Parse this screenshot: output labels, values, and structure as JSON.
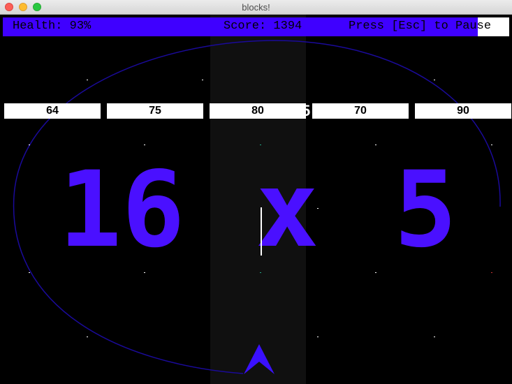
{
  "window": {
    "title": "blocks!"
  },
  "hud": {
    "health": "Health: 93%",
    "score": "Score: 1394",
    "pause_hint": "Press [Esc] to Pause"
  },
  "answers": [
    "64",
    "75",
    "80",
    "70",
    "90"
  ],
  "ghost_digit": "5",
  "question": {
    "left": "16",
    "operator": "x",
    "right": "5"
  },
  "colors": {
    "accent": "#3f00ff",
    "question": "#4a10ff",
    "ellipse": "#1a0a9a",
    "background": "#000000"
  },
  "icons": {
    "ship": "ship-arrow-icon"
  }
}
